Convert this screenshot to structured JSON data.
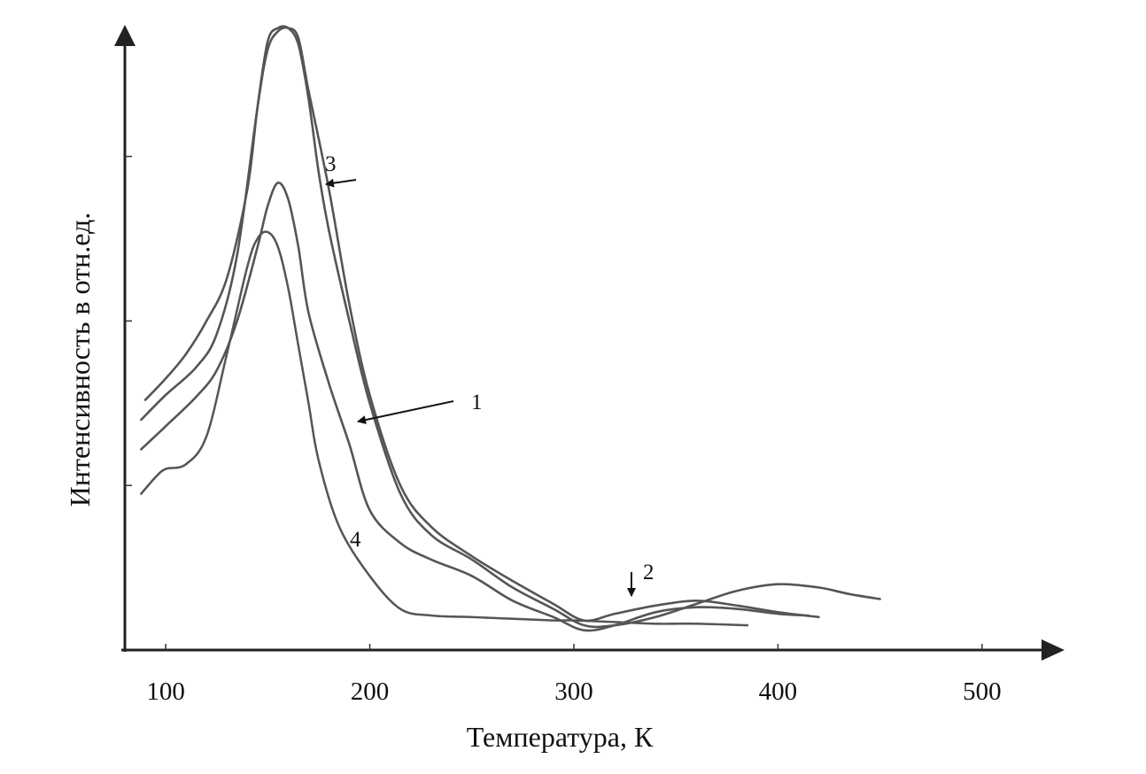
{
  "chart_data": {
    "type": "line",
    "title": "",
    "xlabel": "Температура, К",
    "ylabel": "Интенсивность в отн.ед.",
    "xlim": [
      80,
      530
    ],
    "ylim": [
      0,
      380
    ],
    "x_ticks": [
      100,
      200,
      300,
      400,
      500
    ],
    "x_tick_labels": [
      "100",
      "200",
      "300",
      "400",
      "500"
    ],
    "y_ticks": [
      100,
      200,
      300
    ],
    "y_tick_labels": [],
    "grid": false,
    "legend": "none",
    "series": [
      {
        "name": "1",
        "x": [
          88,
          100,
          115,
          125,
          135,
          145,
          150,
          155,
          160,
          165,
          170,
          180,
          190,
          200,
          215,
          230,
          250,
          270,
          290,
          305,
          320,
          340,
          360,
          380,
          400,
          415
        ],
        "y": [
          122,
          136,
          154,
          170,
          200,
          245,
          270,
          284,
          274,
          245,
          205,
          162,
          125,
          85,
          65,
          55,
          45,
          30,
          20,
          12,
          15,
          23,
          26,
          25,
          22,
          21
        ]
      },
      {
        "name": "2",
        "x": [
          90,
          100,
          110,
          120,
          130,
          140,
          145,
          150,
          155,
          160,
          165,
          170,
          175,
          180,
          190,
          200,
          215,
          230,
          250,
          270,
          290,
          305,
          320,
          340,
          360,
          380,
          400,
          420,
          435,
          450
        ],
        "y": [
          152,
          165,
          180,
          200,
          226,
          280,
          330,
          370,
          378,
          378,
          368,
          335,
          290,
          255,
          200,
          150,
          95,
          70,
          55,
          38,
          25,
          15,
          15,
          20,
          28,
          36,
          40,
          38,
          34,
          31
        ]
      },
      {
        "name": "3",
        "x": [
          88,
          100,
          115,
          125,
          135,
          145,
          150,
          155,
          160,
          165,
          170,
          180,
          190,
          200,
          215,
          230,
          250,
          270,
          290,
          305,
          320,
          340,
          360,
          380,
          400,
          420
        ],
        "y": [
          140,
          155,
          172,
          192,
          240,
          330,
          365,
          376,
          378,
          372,
          340,
          280,
          210,
          155,
          100,
          75,
          57,
          42,
          28,
          18,
          22,
          27,
          30,
          27,
          23,
          20
        ]
      },
      {
        "name": "4",
        "x": [
          88,
          95,
          100,
          110,
          120,
          130,
          140,
          145,
          150,
          155,
          160,
          165,
          170,
          175,
          185,
          200,
          215,
          230,
          250,
          270,
          290,
          300,
          320,
          340,
          360,
          385
        ],
        "y": [
          95,
          105,
          110,
          113,
          130,
          180,
          233,
          250,
          254,
          245,
          220,
          185,
          150,
          115,
          75,
          45,
          25,
          21,
          20,
          19,
          18,
          18,
          17,
          16,
          16,
          15
        ]
      }
    ],
    "annotations": [
      {
        "text": "3",
        "series": "3",
        "x": 178,
        "y": 280
      },
      {
        "text": "1",
        "series": "1",
        "x": 192,
        "y": 139
      },
      {
        "text": "2",
        "series": "2",
        "x": 323,
        "y": 31
      },
      {
        "text": "4",
        "series": "4",
        "x": 185,
        "y": 68
      }
    ]
  }
}
